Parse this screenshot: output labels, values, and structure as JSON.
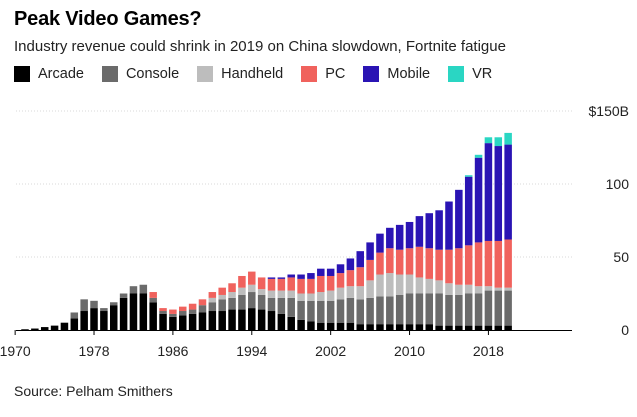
{
  "header": {
    "title": "Peak Video Games?",
    "subtitle": "Industry revenue could shrink in 2019 on China slowdown, Fortnite fatigue"
  },
  "legend": [
    {
      "name": "Arcade",
      "color": "#000000"
    },
    {
      "name": "Console",
      "color": "#6b6b6b"
    },
    {
      "name": "Handheld",
      "color": "#bdbdbd"
    },
    {
      "name": "PC",
      "color": "#f0625d"
    },
    {
      "name": "Mobile",
      "color": "#2a14b4"
    },
    {
      "name": "VR",
      "color": "#2ad6c3"
    }
  ],
  "footer": {
    "source": "Source: Pelham Smithers"
  },
  "chart_data": {
    "type": "bar",
    "stacked": true,
    "title": "Peak Video Games?",
    "xlabel": "",
    "ylabel": "",
    "ylim": [
      0,
      150
    ],
    "y_ticks": [
      0,
      50,
      100,
      150
    ],
    "y_tick_labels": [
      "0",
      "50",
      "100",
      "$150B"
    ],
    "x_tick_labels": [
      "1970",
      "1978",
      "1986",
      "1994",
      "2002",
      "2010",
      "2018"
    ],
    "categories": [
      "1971",
      "1972",
      "1973",
      "1974",
      "1975",
      "1976",
      "1977",
      "1978",
      "1979",
      "1980",
      "1981",
      "1982",
      "1983",
      "1984",
      "1985",
      "1986",
      "1987",
      "1988",
      "1989",
      "1990",
      "1991",
      "1992",
      "1993",
      "1994",
      "1995",
      "1996",
      "1997",
      "1998",
      "1999",
      "2000",
      "2001",
      "2002",
      "2003",
      "2004",
      "2005",
      "2006",
      "2007",
      "2008",
      "2009",
      "2010",
      "2011",
      "2012",
      "2013",
      "2014",
      "2015",
      "2016",
      "2017",
      "2018",
      "2019",
      "2020"
    ],
    "series": [
      {
        "name": "Arcade",
        "values": [
          0.5,
          1,
          2,
          3,
          5,
          8,
          13,
          15,
          13,
          17,
          22,
          25,
          25,
          19,
          11,
          9,
          10,
          11,
          12,
          13,
          13,
          14,
          14,
          15,
          14,
          13,
          11,
          9,
          7,
          6,
          5,
          5,
          5,
          5,
          4,
          4,
          4,
          4,
          4,
          4,
          4,
          4,
          3,
          3,
          3,
          3,
          3,
          3,
          3,
          3
        ]
      },
      {
        "name": "Console",
        "values": [
          0,
          0,
          0,
          0,
          0,
          4,
          8,
          5,
          2,
          2,
          3,
          5,
          6,
          3,
          2,
          2,
          3,
          3,
          5,
          6,
          8,
          8,
          10,
          11,
          10,
          9,
          11,
          13,
          13,
          14,
          15,
          15,
          16,
          17,
          17,
          18,
          19,
          19,
          20,
          21,
          21,
          21,
          22,
          21,
          21,
          22,
          22,
          24,
          24,
          24
        ]
      },
      {
        "name": "Handheld",
        "values": [
          0,
          0,
          0,
          0,
          0,
          0,
          0,
          0,
          0,
          0,
          0,
          0,
          0,
          0,
          0,
          0,
          0,
          0,
          0,
          3,
          3,
          4,
          5,
          5,
          4,
          5,
          5,
          5,
          5,
          5,
          6,
          7,
          8,
          8,
          9,
          12,
          15,
          16,
          14,
          13,
          11,
          10,
          9,
          8,
          7,
          6,
          5,
          3,
          2,
          2
        ]
      },
      {
        "name": "PC",
        "values": [
          0,
          0,
          0,
          0,
          0,
          0,
          0,
          0,
          0,
          0,
          0,
          0,
          0,
          4,
          2,
          3,
          3,
          4,
          4,
          4,
          5,
          6,
          8,
          9,
          8,
          8,
          8,
          9,
          10,
          10,
          11,
          10,
          10,
          11,
          13,
          14,
          15,
          17,
          17,
          18,
          21,
          21,
          21,
          23,
          25,
          27,
          30,
          31,
          32,
          33
        ]
      },
      {
        "name": "Mobile",
        "values": [
          0,
          0,
          0,
          0,
          0,
          0,
          0,
          0,
          0,
          0,
          0,
          0,
          0,
          0,
          0,
          0,
          0,
          0,
          0,
          0,
          0,
          0,
          0,
          0,
          0,
          1,
          1,
          2,
          3,
          4,
          5,
          5,
          6,
          8,
          11,
          12,
          13,
          14,
          17,
          18,
          21,
          24,
          27,
          33,
          40,
          47,
          58,
          67,
          65,
          65
        ]
      },
      {
        "name": "VR",
        "values": [
          0,
          0,
          0,
          0,
          0,
          0,
          0,
          0,
          0,
          0,
          0,
          0,
          0,
          0,
          0,
          0,
          0,
          0,
          0,
          0,
          0,
          0,
          0,
          0,
          0,
          0,
          0,
          0,
          0,
          0,
          0,
          0,
          0,
          0,
          0,
          0,
          0,
          0,
          0,
          0,
          0,
          0,
          0,
          0,
          0,
          1,
          2,
          4,
          6,
          8
        ]
      }
    ]
  }
}
